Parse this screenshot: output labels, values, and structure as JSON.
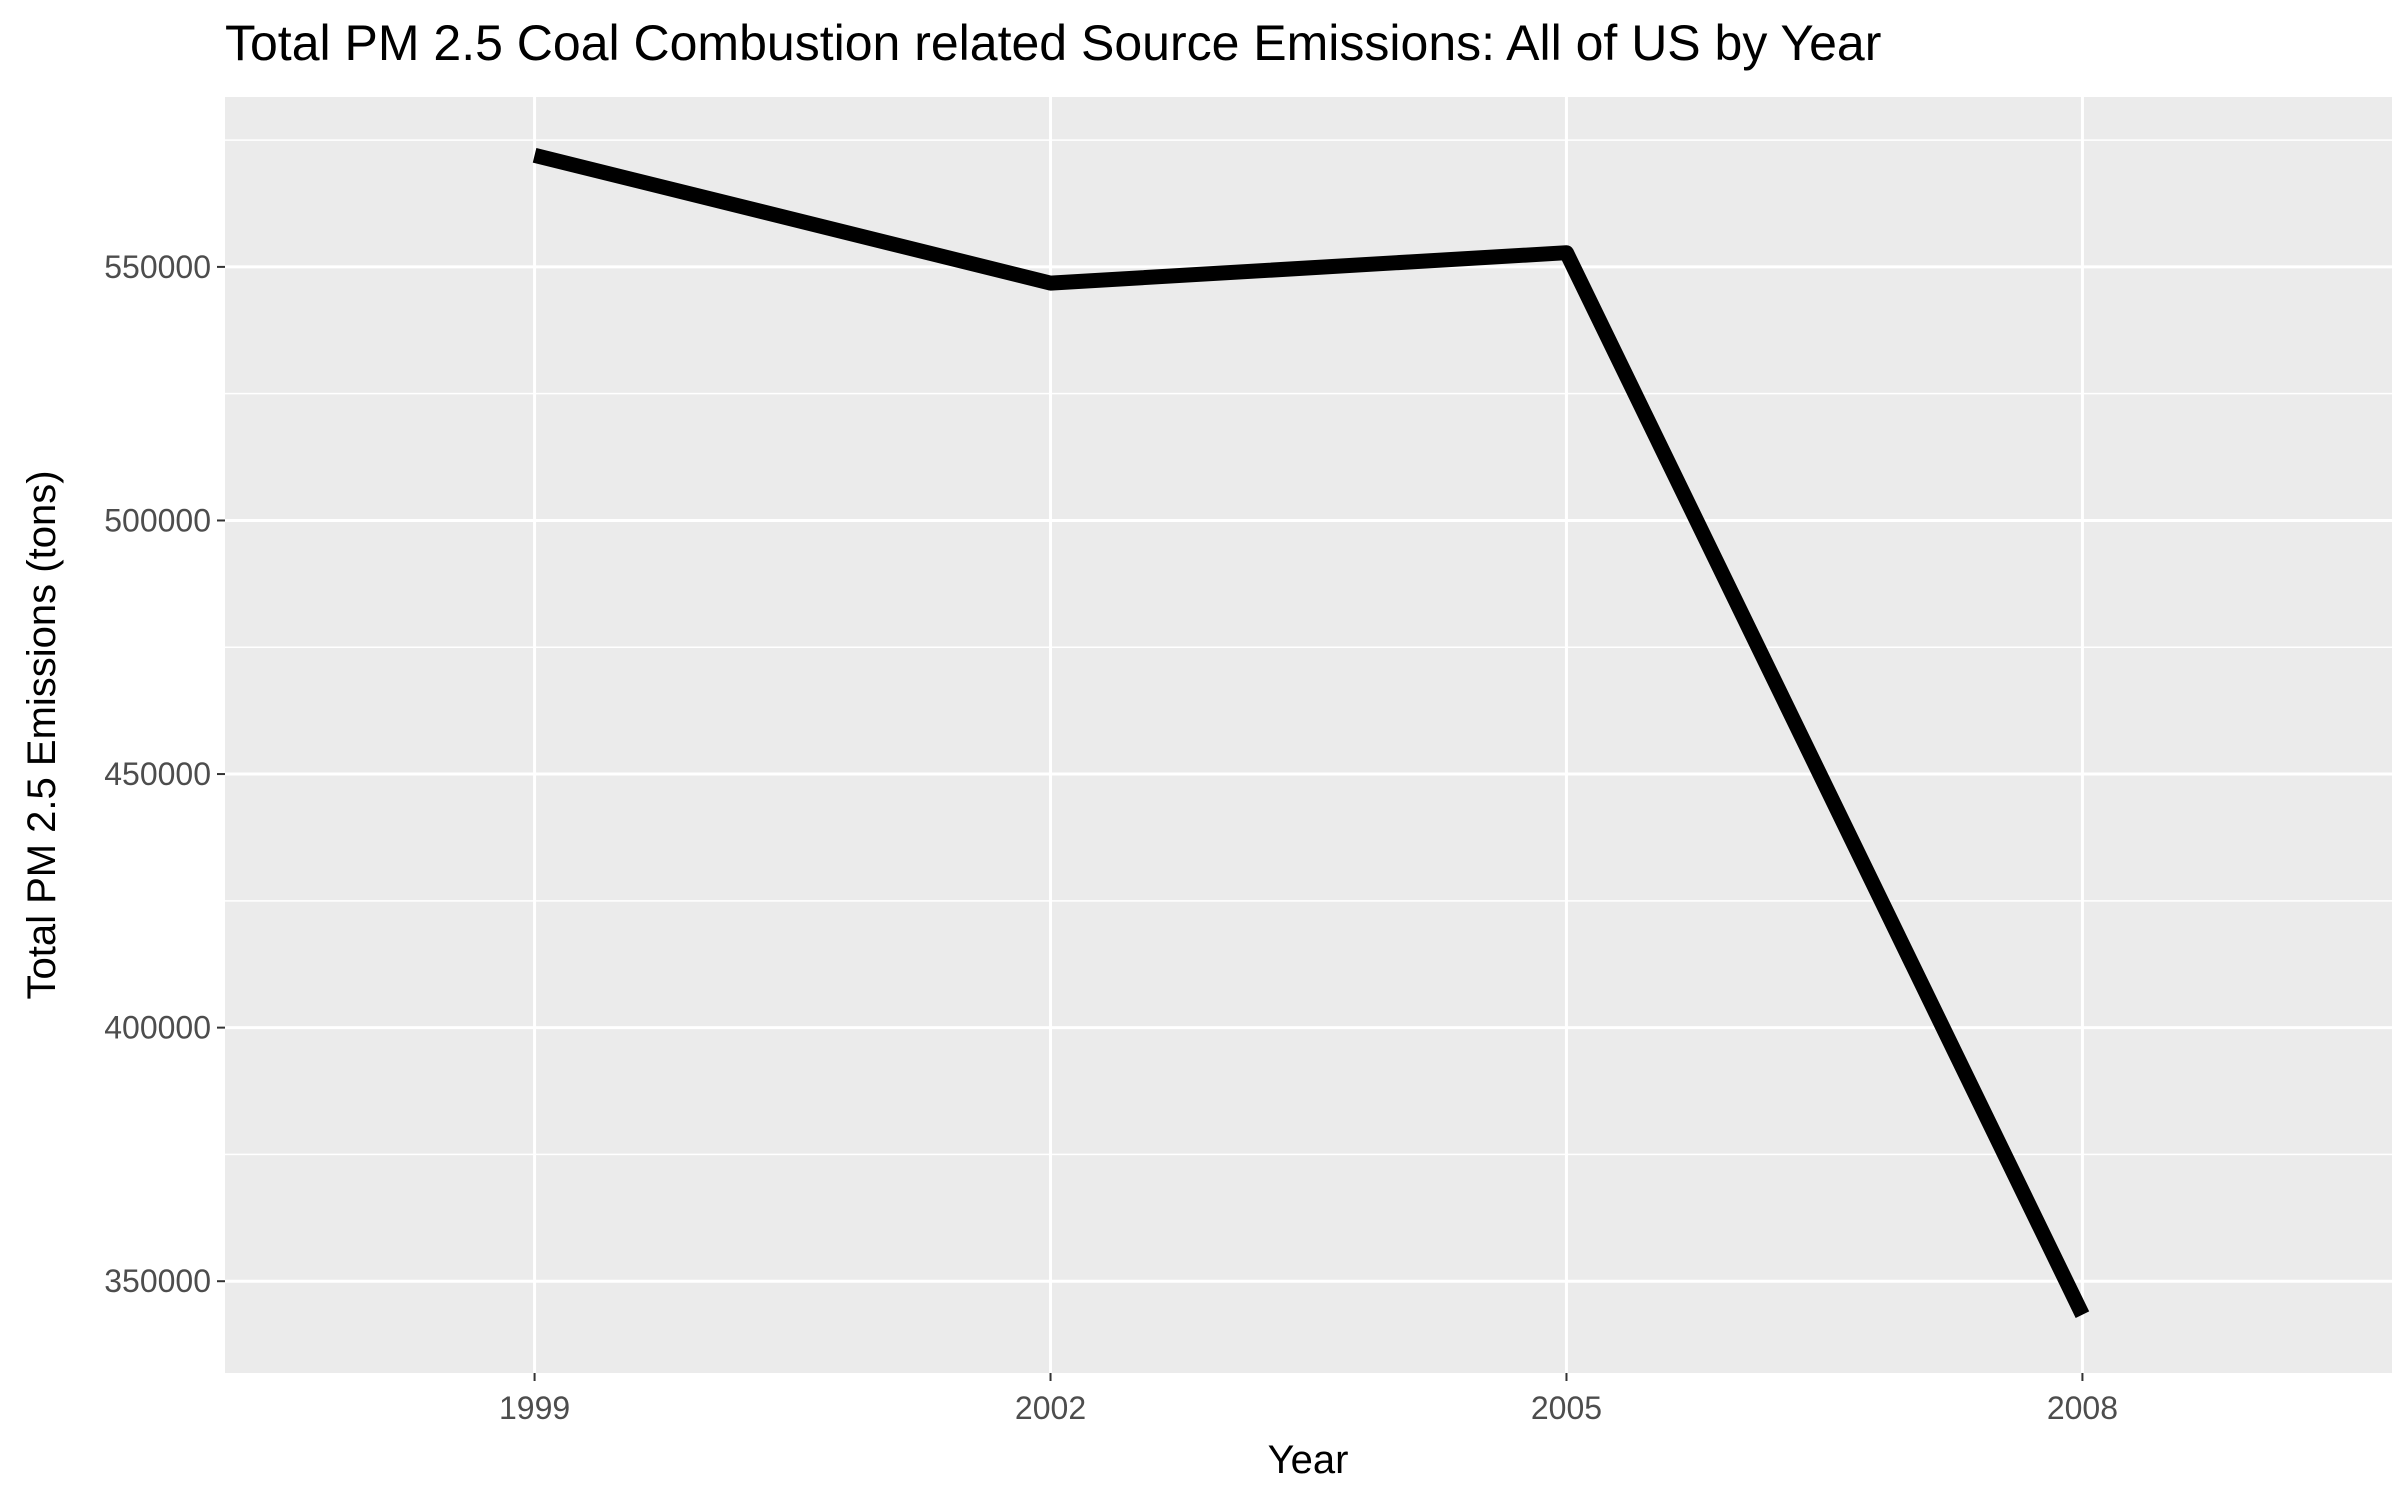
{
  "chart_data": {
    "type": "line",
    "title": "Total PM 2.5 Coal Combustion related Source Emissions: All of US by Year",
    "xlabel": "Year",
    "ylabel": "Total PM 2.5 Emissions (tons)",
    "x": [
      1999,
      2002,
      2005,
      2008
    ],
    "series": [
      {
        "values": [
          572000,
          546800,
          552800,
          343400
        ]
      }
    ],
    "xticks": [
      "1999",
      "2002",
      "2005",
      "2008"
    ],
    "yticks": [
      "350000",
      "400000",
      "450000",
      "500000",
      "550000"
    ],
    "xlim": [
      1997.2,
      2009.8
    ],
    "ylim": [
      331900,
      583500
    ],
    "grid": true,
    "background": "#ebebeb",
    "line_color": "#000000"
  }
}
